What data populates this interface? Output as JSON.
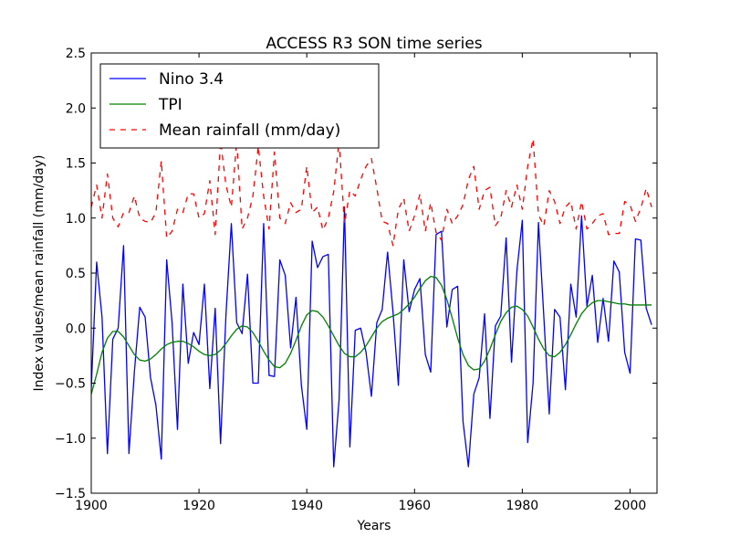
{
  "chart_data": {
    "type": "line",
    "title": "ACCESS R3 SON time series",
    "xlabel": "Years",
    "ylabel": "Index values/mean rainfall (mm/day)",
    "xlim": [
      1900,
      2005
    ],
    "ylim": [
      -1.5,
      2.5
    ],
    "x_ticks": [
      1900,
      1920,
      1940,
      1960,
      1980,
      2000
    ],
    "x_tick_labels": [
      "1900",
      "1920",
      "1940",
      "1960",
      "1980",
      "2000"
    ],
    "y_ticks": [
      -1.5,
      -1.0,
      -0.5,
      0.0,
      0.5,
      1.0,
      1.5,
      2.0,
      2.5
    ],
    "y_tick_labels": [
      "−1.5",
      "−1.0",
      "−0.5",
      "0.0",
      "0.5",
      "1.0",
      "1.5",
      "2.0",
      "2.5"
    ],
    "grid": false,
    "legend_position": "top-left",
    "x_start": 1900,
    "series": [
      {
        "name": "Nino 3.4",
        "color": "#0000ff",
        "style": "solid",
        "values": [
          -0.55,
          0.6,
          0.1,
          -1.14,
          -0.1,
          0.0,
          0.75,
          -1.14,
          -0.4,
          0.19,
          0.1,
          -0.45,
          -0.7,
          -1.19,
          0.62,
          0.05,
          -0.92,
          0.4,
          -0.32,
          -0.04,
          -0.15,
          0.4,
          -0.55,
          0.18,
          -1.05,
          0.12,
          0.95,
          0.05,
          -0.05,
          0.49,
          -0.5,
          -0.5,
          0.95,
          -0.43,
          -0.44,
          0.62,
          0.48,
          -0.18,
          0.28,
          -0.52,
          -0.92,
          0.79,
          0.55,
          0.65,
          0.67,
          -1.26,
          -0.65,
          1.1,
          -1.08,
          -0.02,
          0.0,
          -0.22,
          -0.62,
          0.05,
          0.17,
          0.69,
          0.15,
          -0.52,
          0.62,
          0.15,
          0.35,
          0.45,
          -0.24,
          -0.4,
          0.85,
          0.88,
          0.01,
          0.35,
          0.38,
          -0.85,
          -1.26,
          -0.6,
          -0.45,
          0.13,
          -0.82,
          0.02,
          0.11,
          0.82,
          -0.31,
          0.52,
          0.98,
          -1.04,
          -0.5,
          0.96,
          0.1,
          -0.78,
          0.17,
          0.1,
          -0.56,
          0.4,
          0.1,
          1.02,
          0.2,
          0.48,
          -0.13,
          0.27,
          -0.12,
          0.61,
          0.51,
          -0.22,
          -0.41,
          0.81,
          0.8,
          0.18,
          0.03
        ]
      },
      {
        "name": "TPI",
        "color": "#008000",
        "style": "solid",
        "values": [
          -0.6,
          -0.42,
          -0.22,
          -0.09,
          -0.03,
          -0.03,
          -0.08,
          -0.16,
          -0.24,
          -0.29,
          -0.3,
          -0.28,
          -0.24,
          -0.19,
          -0.15,
          -0.13,
          -0.12,
          -0.12,
          -0.14,
          -0.17,
          -0.21,
          -0.24,
          -0.25,
          -0.24,
          -0.2,
          -0.14,
          -0.07,
          -0.01,
          0.02,
          0.01,
          -0.04,
          -0.12,
          -0.21,
          -0.29,
          -0.35,
          -0.36,
          -0.32,
          -0.23,
          -0.11,
          0.02,
          0.12,
          0.16,
          0.15,
          0.1,
          0.02,
          -0.07,
          -0.16,
          -0.23,
          -0.26,
          -0.26,
          -0.22,
          -0.16,
          -0.08,
          0.0,
          0.06,
          0.09,
          0.11,
          0.13,
          0.17,
          0.22,
          0.28,
          0.36,
          0.43,
          0.47,
          0.46,
          0.39,
          0.26,
          0.09,
          -0.09,
          -0.24,
          -0.34,
          -0.38,
          -0.37,
          -0.3,
          -0.19,
          -0.06,
          0.06,
          0.14,
          0.19,
          0.2,
          0.17,
          0.11,
          0.01,
          -0.1,
          -0.19,
          -0.25,
          -0.26,
          -0.22,
          -0.15,
          -0.06,
          0.04,
          0.13,
          0.19,
          0.23,
          0.25,
          0.25,
          0.24,
          0.23,
          0.22,
          0.22,
          0.21,
          0.21,
          0.21,
          0.21,
          0.21
        ]
      },
      {
        "name": "Mean rainfall (mm/day)",
        "color": "#ff0000",
        "style": "dashed",
        "values": [
          1.1,
          1.3,
          1.0,
          1.4,
          1.0,
          0.92,
          1.05,
          1.05,
          1.2,
          1.0,
          0.97,
          0.96,
          1.05,
          1.52,
          0.82,
          0.88,
          1.08,
          1.05,
          1.22,
          1.22,
          1.0,
          1.04,
          1.34,
          0.85,
          1.7,
          1.3,
          1.1,
          1.7,
          0.9,
          1.0,
          1.2,
          1.65,
          1.2,
          0.9,
          1.6,
          1.0,
          0.95,
          1.14,
          1.05,
          1.08,
          1.47,
          1.05,
          1.1,
          0.89,
          1.0,
          1.24,
          1.7,
          0.95,
          1.25,
          1.2,
          1.35,
          1.47,
          1.54,
          1.27,
          0.97,
          0.95,
          0.75,
          1.08,
          1.18,
          0.88,
          1.02,
          1.22,
          0.88,
          1.14,
          0.87,
          0.8,
          1.08,
          0.95,
          1.02,
          1.12,
          1.35,
          1.47,
          1.08,
          1.25,
          1.28,
          0.93,
          1.0,
          1.25,
          1.1,
          1.3,
          1.08,
          1.47,
          1.72,
          1.03,
          0.93,
          1.25,
          1.15,
          0.95,
          1.1,
          1.15,
          0.9,
          1.15,
          0.9,
          0.95,
          1.02,
          1.04,
          0.85,
          0.86,
          0.86,
          1.15,
          1.12,
          0.97,
          1.09,
          1.27,
          1.1
        ]
      }
    ]
  }
}
